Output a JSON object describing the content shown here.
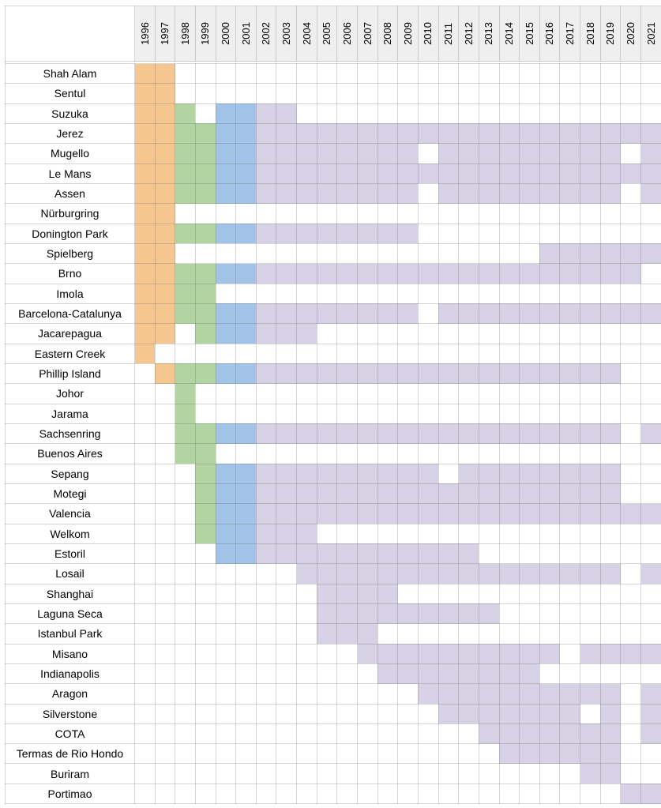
{
  "chart_data": {
    "type": "heatmap",
    "title": "",
    "years": [
      "1996",
      "1997",
      "1998",
      "1999",
      "2000",
      "2001",
      "2002",
      "2003",
      "2004",
      "2005",
      "2006",
      "2007",
      "2008",
      "2009",
      "2010",
      "2011",
      "2012",
      "2013",
      "2014",
      "2015",
      "2016",
      "2017",
      "2018",
      "2019",
      "2020",
      "2021"
    ],
    "palette": {
      "O": "#f6c690",
      "G": "#b2d3a2",
      "B": "#a0c3e7",
      "P": "#d7d1e6",
      ".": "#ffffff"
    },
    "header_background": "#efefef",
    "rows": [
      {
        "name": "Shah Alam",
        "cells": "OO........................"
      },
      {
        "name": "Sentul",
        "cells": "OO........................"
      },
      {
        "name": "Suzuka",
        "cells": "OOG.BBPP.................."
      },
      {
        "name": "Jerez",
        "cells": "OOGGBBPPPPPPPPPPPPPPPPPPPP"
      },
      {
        "name": "Mugello",
        "cells": "OOGGBBPPPPPPPP.PPPPPPPPP.P"
      },
      {
        "name": "Le Mans",
        "cells": "OOGGBBPPPPPPPPPPPPPPPPPPPP"
      },
      {
        "name": "Assen",
        "cells": "OOGGBBPPPPPPPP.PPPPPPPPP.P"
      },
      {
        "name": "Nürburgring",
        "cells": "OO........................"
      },
      {
        "name": "Donington Park",
        "cells": "OOGGBBPPPPPPPP............"
      },
      {
        "name": "Spielberg",
        "cells": "OO..................PPPPPP"
      },
      {
        "name": "Brno",
        "cells": "OOGGBBPPPPPPPPPPPPPPPPPPP."
      },
      {
        "name": "Imola",
        "cells": "OOGG......................"
      },
      {
        "name": "Barcelona-Catalunya",
        "cells": "OOGGBBPPPPPPPP.PPPPPPPPPPP"
      },
      {
        "name": "Jacarepagua",
        "cells": "OO.GBBPPP................."
      },
      {
        "name": "Eastern Creek",
        "cells": "O........................."
      },
      {
        "name": "Phillip Island",
        "cells": ".OGGBBPPPPPPPPPPPPPPPPPP.."
      },
      {
        "name": "Johor",
        "cells": "..G......................."
      },
      {
        "name": "Jarama",
        "cells": "..G......................."
      },
      {
        "name": "Sachsenring",
        "cells": "..GGBBPPPPPPPPPPPPPPPPPP.P"
      },
      {
        "name": "Buenos Aires",
        "cells": "..GG......................"
      },
      {
        "name": "Sepang",
        "cells": "...GBBPPPPPPPPP.PPPPPPPP.."
      },
      {
        "name": "Motegi",
        "cells": "...GBBPPPPPPPPPPPPPPPPPP.."
      },
      {
        "name": "Valencia",
        "cells": "...GBBPPPPPPPPPPPPPPPPPPPP"
      },
      {
        "name": "Welkom",
        "cells": "...GBBPPP................."
      },
      {
        "name": "Estoril",
        "cells": "....BBPPPPPPPPPPP........."
      },
      {
        "name": "Losail",
        "cells": "........PPPPPPPPPPPPPPPP.P"
      },
      {
        "name": "Shanghai",
        "cells": ".........PPPP............."
      },
      {
        "name": "Laguna Seca",
        "cells": ".........PPPPPPPPP........"
      },
      {
        "name": "Istanbul Park",
        "cells": ".........PPP.............."
      },
      {
        "name": "Misano",
        "cells": "...........PPPPPPPPPP.PPPP"
      },
      {
        "name": "Indianapolis",
        "cells": "............PPPPPPPP......"
      },
      {
        "name": "Aragon",
        "cells": "..............PPPPPPPPPP.P"
      },
      {
        "name": "Silverstone",
        "cells": "...............PPPPPPP.P.P"
      },
      {
        "name": "COTA",
        "cells": ".................PPPPPPP.P"
      },
      {
        "name": "Termas de Rio Hondo",
        "cells": "..................PPPPPP.."
      },
      {
        "name": "Buriram",
        "cells": "......................PP.."
      },
      {
        "name": "Portimao",
        "cells": "........................PP"
      }
    ]
  }
}
